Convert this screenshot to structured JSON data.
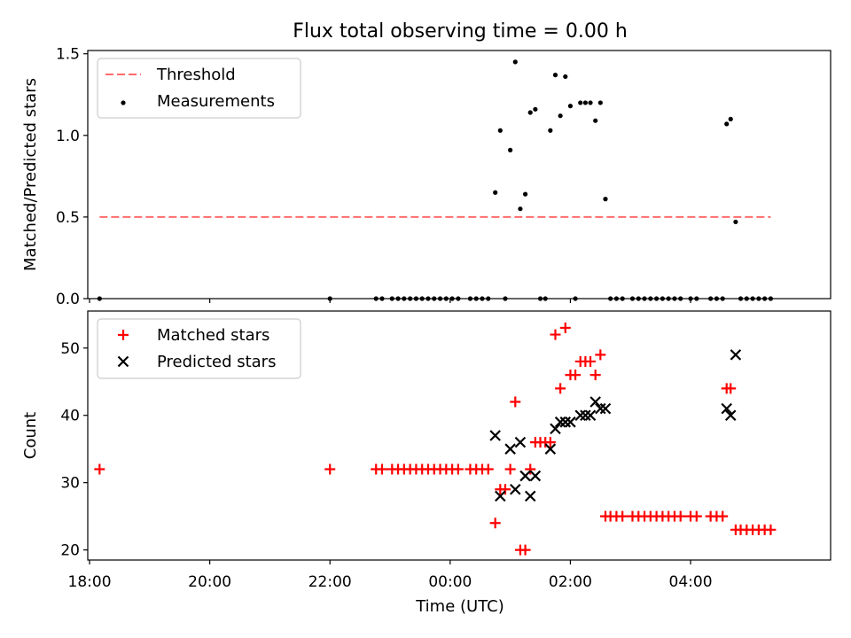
{
  "figure": {
    "title": "Flux total observing time = 0.00 h",
    "xlabel": "Time (UTC)",
    "xticks": [
      "18:00",
      "20:00",
      "22:00",
      "00:00",
      "02:00",
      "04:00"
    ]
  },
  "chart_data": [
    {
      "type": "scatter",
      "ylabel": "Matched/Predicted stars",
      "ylim": [
        0,
        1.52
      ],
      "yticks": [
        "0.0",
        "0.5",
        "1.0",
        "1.5"
      ],
      "xlim_hours": [
        17.97,
        30.33
      ],
      "legend": {
        "placement": "top-left",
        "entries": [
          "Threshold",
          "Measurements"
        ]
      },
      "threshold": {
        "name": "Threshold",
        "value": 0.5,
        "x_start": "18:10",
        "x_end": "05:20",
        "color": "#ff6b6b"
      },
      "series": [
        {
          "name": "Measurements",
          "color": "#000000",
          "points": [
            [
              "18:10",
              0.0
            ],
            [
              "22:00",
              0.0
            ],
            [
              "22:46",
              0.0
            ],
            [
              "22:52",
              0.0
            ],
            [
              "23:02",
              0.0
            ],
            [
              "23:08",
              0.0
            ],
            [
              "23:14",
              0.0
            ],
            [
              "23:20",
              0.0
            ],
            [
              "23:26",
              0.0
            ],
            [
              "23:32",
              0.0
            ],
            [
              "23:38",
              0.0
            ],
            [
              "23:44",
              0.0
            ],
            [
              "23:50",
              0.0
            ],
            [
              "23:56",
              0.0
            ],
            [
              "00:02",
              0.0
            ],
            [
              "00:08",
              0.0
            ],
            [
              "00:20",
              0.0
            ],
            [
              "00:26",
              0.0
            ],
            [
              "00:32",
              0.0
            ],
            [
              "00:38",
              0.0
            ],
            [
              "00:45",
              0.65
            ],
            [
              "00:50",
              1.03
            ],
            [
              "00:55",
              0.0
            ],
            [
              "01:00",
              0.91
            ],
            [
              "01:05",
              1.45
            ],
            [
              "01:10",
              0.55
            ],
            [
              "01:15",
              0.64
            ],
            [
              "01:20",
              1.14
            ],
            [
              "01:25",
              1.16
            ],
            [
              "01:30",
              0.0
            ],
            [
              "01:35",
              0.0
            ],
            [
              "01:40",
              1.03
            ],
            [
              "01:45",
              1.37
            ],
            [
              "01:50",
              1.12
            ],
            [
              "01:55",
              1.36
            ],
            [
              "02:00",
              1.18
            ],
            [
              "02:05",
              0.0
            ],
            [
              "02:10",
              1.2
            ],
            [
              "02:15",
              1.2
            ],
            [
              "02:20",
              1.2
            ],
            [
              "02:25",
              1.09
            ],
            [
              "02:30",
              1.2
            ],
            [
              "02:35",
              0.61
            ],
            [
              "02:40",
              0.0
            ],
            [
              "02:46",
              0.0
            ],
            [
              "02:52",
              0.0
            ],
            [
              "03:02",
              0.0
            ],
            [
              "03:08",
              0.0
            ],
            [
              "03:14",
              0.0
            ],
            [
              "03:20",
              0.0
            ],
            [
              "03:26",
              0.0
            ],
            [
              "03:32",
              0.0
            ],
            [
              "03:38",
              0.0
            ],
            [
              "03:44",
              0.0
            ],
            [
              "03:50",
              0.0
            ],
            [
              "04:00",
              0.0
            ],
            [
              "04:06",
              0.0
            ],
            [
              "04:20",
              0.0
            ],
            [
              "04:26",
              0.0
            ],
            [
              "04:32",
              0.0
            ],
            [
              "04:36",
              1.07
            ],
            [
              "04:40",
              1.1
            ],
            [
              "04:45",
              0.47
            ],
            [
              "04:50",
              0.0
            ],
            [
              "04:56",
              0.0
            ],
            [
              "05:02",
              0.0
            ],
            [
              "05:08",
              0.0
            ],
            [
              "05:14",
              0.0
            ],
            [
              "05:20",
              0.0
            ]
          ]
        }
      ]
    },
    {
      "type": "scatter",
      "ylabel": "Count",
      "ylim": [
        18.5,
        55.5
      ],
      "yticks": [
        "20",
        "30",
        "40",
        "50"
      ],
      "xlim_hours": [
        17.97,
        30.33
      ],
      "legend": {
        "placement": "top-left",
        "entries": [
          "Matched stars",
          "Predicted stars"
        ]
      },
      "series": [
        {
          "name": "Matched stars",
          "marker": "plus",
          "color": "#ff0000",
          "points": [
            [
              "18:10",
              32
            ],
            [
              "22:00",
              32
            ],
            [
              "22:46",
              32
            ],
            [
              "22:52",
              32
            ],
            [
              "23:02",
              32
            ],
            [
              "23:08",
              32
            ],
            [
              "23:14",
              32
            ],
            [
              "23:20",
              32
            ],
            [
              "23:26",
              32
            ],
            [
              "23:32",
              32
            ],
            [
              "23:38",
              32
            ],
            [
              "23:44",
              32
            ],
            [
              "23:50",
              32
            ],
            [
              "23:56",
              32
            ],
            [
              "00:02",
              32
            ],
            [
              "00:08",
              32
            ],
            [
              "00:20",
              32
            ],
            [
              "00:26",
              32
            ],
            [
              "00:32",
              32
            ],
            [
              "00:38",
              32
            ],
            [
              "00:45",
              24
            ],
            [
              "00:50",
              29
            ],
            [
              "00:55",
              29
            ],
            [
              "01:00",
              32
            ],
            [
              "01:05",
              42
            ],
            [
              "01:10",
              20
            ],
            [
              "01:15",
              20
            ],
            [
              "01:20",
              32
            ],
            [
              "01:25",
              36
            ],
            [
              "01:30",
              36
            ],
            [
              "01:35",
              36
            ],
            [
              "01:40",
              36
            ],
            [
              "01:45",
              52
            ],
            [
              "01:50",
              44
            ],
            [
              "01:55",
              53
            ],
            [
              "02:00",
              46
            ],
            [
              "02:05",
              46
            ],
            [
              "02:10",
              48
            ],
            [
              "02:15",
              48
            ],
            [
              "02:20",
              48
            ],
            [
              "02:25",
              46
            ],
            [
              "02:30",
              49
            ],
            [
              "02:35",
              25
            ],
            [
              "02:40",
              25
            ],
            [
              "02:46",
              25
            ],
            [
              "02:52",
              25
            ],
            [
              "03:02",
              25
            ],
            [
              "03:08",
              25
            ],
            [
              "03:14",
              25
            ],
            [
              "03:20",
              25
            ],
            [
              "03:26",
              25
            ],
            [
              "03:32",
              25
            ],
            [
              "03:38",
              25
            ],
            [
              "03:44",
              25
            ],
            [
              "03:50",
              25
            ],
            [
              "04:00",
              25
            ],
            [
              "04:06",
              25
            ],
            [
              "04:20",
              25
            ],
            [
              "04:26",
              25
            ],
            [
              "04:32",
              25
            ],
            [
              "04:36",
              44
            ],
            [
              "04:40",
              44
            ],
            [
              "04:45",
              23
            ],
            [
              "04:50",
              23
            ],
            [
              "04:56",
              23
            ],
            [
              "05:02",
              23
            ],
            [
              "05:08",
              23
            ],
            [
              "05:14",
              23
            ],
            [
              "05:20",
              23
            ]
          ]
        },
        {
          "name": "Predicted stars",
          "marker": "x",
          "color": "#000000",
          "points": [
            [
              "00:45",
              37
            ],
            [
              "00:50",
              28
            ],
            [
              "01:00",
              35
            ],
            [
              "01:05",
              29
            ],
            [
              "01:10",
              36
            ],
            [
              "01:15",
              31
            ],
            [
              "01:20",
              28
            ],
            [
              "01:25",
              31
            ],
            [
              "01:40",
              35
            ],
            [
              "01:45",
              38
            ],
            [
              "01:50",
              39
            ],
            [
              "01:55",
              39
            ],
            [
              "02:00",
              39
            ],
            [
              "02:10",
              40
            ],
            [
              "02:15",
              40
            ],
            [
              "02:20",
              40
            ],
            [
              "02:25",
              42
            ],
            [
              "02:30",
              41
            ],
            [
              "02:35",
              41
            ],
            [
              "04:36",
              41
            ],
            [
              "04:40",
              40
            ],
            [
              "04:45",
              49
            ]
          ]
        }
      ]
    }
  ]
}
